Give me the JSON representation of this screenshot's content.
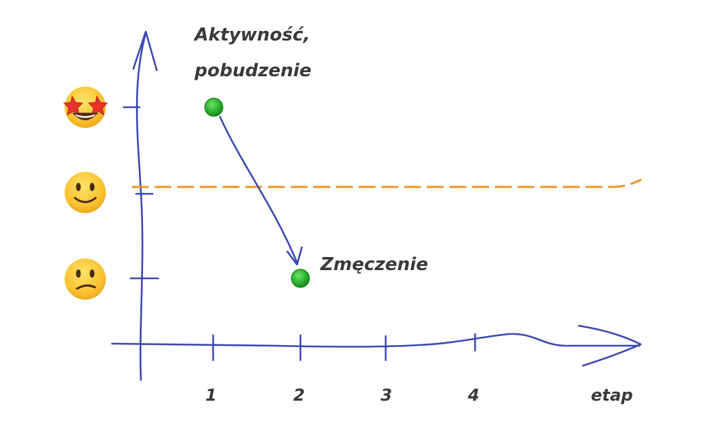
{
  "title_lines": [
    "Aktywność,",
    "pobudzenie"
  ],
  "point_label": "Zmęczenie",
  "x_axis_label": "etap",
  "x_ticks": [
    "1",
    "2",
    "3",
    "4"
  ],
  "y_levels": [
    {
      "name": "star-struck",
      "icon": "star-struck-face-icon"
    },
    {
      "name": "smile",
      "icon": "slightly-smiling-face-icon"
    },
    {
      "name": "confused",
      "icon": "confused-face-icon"
    }
  ],
  "colors": {
    "axis": "#3a49b0",
    "dashed_baseline": "#f0941e",
    "point_fill": "#2fb32f",
    "text": "#3a3a3a"
  },
  "chart_data": {
    "type": "scatter",
    "points": [
      {
        "x": 1,
        "y": 3
      },
      {
        "x": 2,
        "y": 1
      }
    ],
    "baseline_level": 2,
    "arrow": {
      "from_index": 0,
      "to_index": 1
    }
  }
}
